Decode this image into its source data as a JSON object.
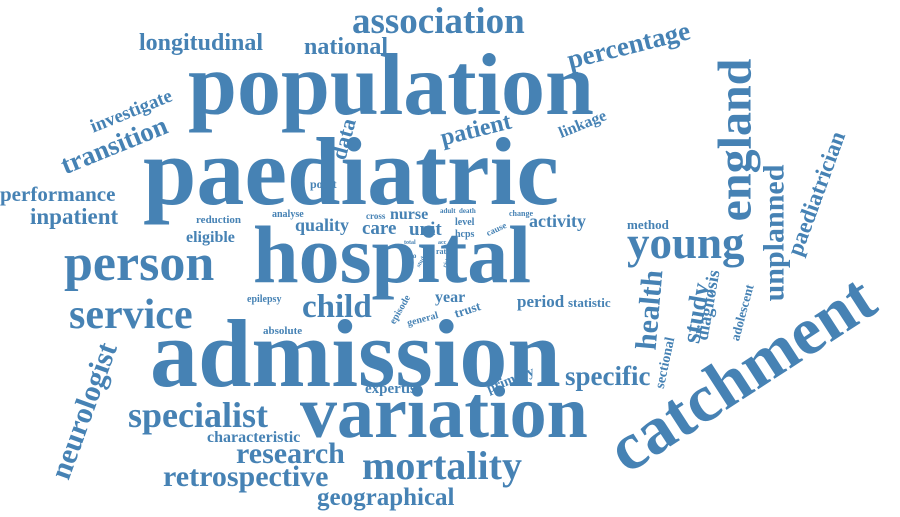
{
  "colors": {
    "word": "#4682b4",
    "background": "#ffffff"
  },
  "words": {
    "association": "association",
    "longitudinal": "longitudinal",
    "national": "national",
    "percentage": "percentage",
    "population": "population",
    "england": "england",
    "investigate": "investigate",
    "transition": "transition",
    "data": "data",
    "patient": "patient",
    "linkage": "linkage",
    "paediatric": "paediatric",
    "point": "point",
    "performance": "performance",
    "inpatient": "inpatient",
    "reduction": "reduction",
    "analyse": "analyse",
    "quality": "quality",
    "cross": "cross",
    "nurse": "nurse",
    "adult": "adult",
    "death": "death",
    "change": "change",
    "care": "care",
    "unit": "unit",
    "level": "level",
    "cause": "cause",
    "activity": "activity",
    "method": "method",
    "eligible": "eligible",
    "total": "total",
    "acc": "acc",
    "hcps": "hcps",
    "rate": "rate",
    "ratio": "ratio",
    "study_small": "study",
    "risk": "risk",
    "hospital": "hospital",
    "young": "young",
    "person": "person",
    "unplanned": "unplanned",
    "paediatrician": "paediatrician",
    "service": "service",
    "child": "child",
    "epilepsy": "epilepsy",
    "year": "year",
    "period": "period",
    "statistic": "statistic",
    "trust": "trust",
    "episode": "episode",
    "general": "general",
    "health": "health",
    "study": "study",
    "diagnosis": "diagnosis",
    "adolescent": "adolescent",
    "catchment": "catchment",
    "absolute": "absolute",
    "admission": "admission",
    "sectional": "sectional",
    "specific": "specific",
    "neurologist": "neurologist",
    "expertise": "expertise",
    "primary": "primary",
    "specialist": "specialist",
    "variation": "variation",
    "characteristic": "characteristic",
    "research": "research",
    "mortality": "mortality",
    "retrospective": "retrospective",
    "geographical": "geographical"
  }
}
